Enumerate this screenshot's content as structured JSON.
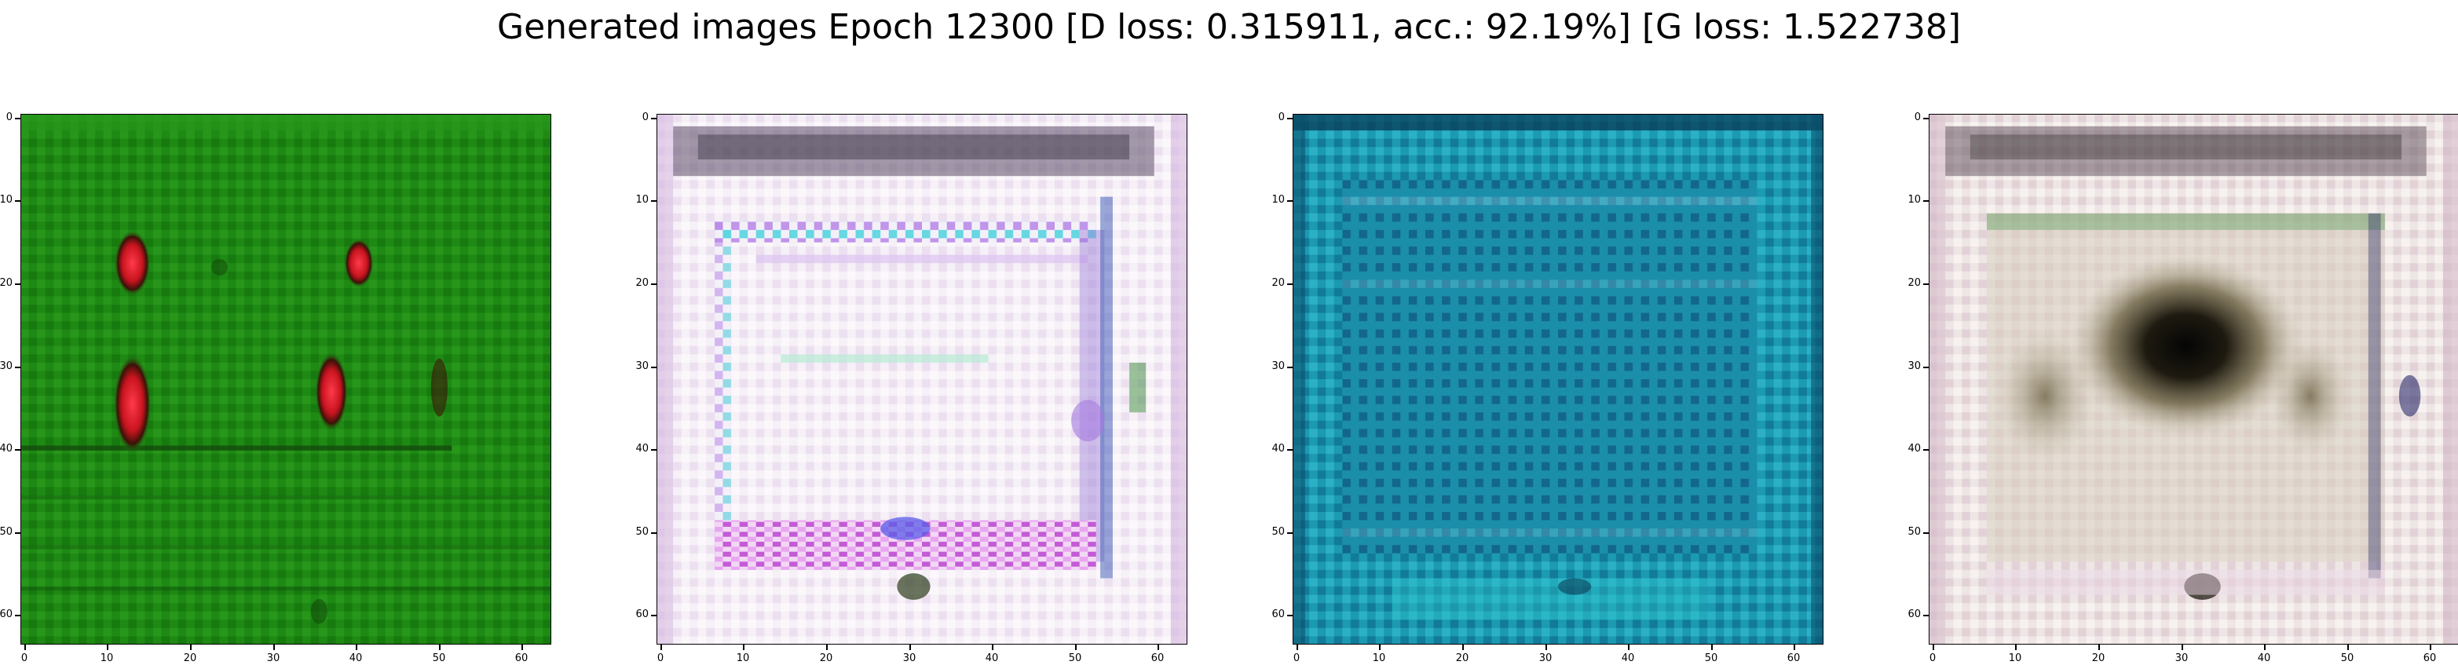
{
  "figure": {
    "title": "Generated images Epoch 12300 [D loss: 0.315911, acc.: 92.19%] [G loss: 1.522738]"
  },
  "axes": {
    "x_ticks": [
      "0",
      "10",
      "20",
      "30",
      "40",
      "50",
      "60"
    ],
    "y_ticks": [
      "0",
      "10",
      "20",
      "30",
      "40",
      "50",
      "60"
    ],
    "range": [
      0,
      63
    ]
  },
  "panels": [
    {
      "name": "generated-image-1",
      "dominant_colors": [
        "#1f8a12",
        "#d81b2a",
        "#111111"
      ]
    },
    {
      "name": "generated-image-2",
      "dominant_colors": [
        "#f4eef6",
        "#c45bd6",
        "#58d6e0"
      ]
    },
    {
      "name": "generated-image-3",
      "dominant_colors": [
        "#1aa0b8",
        "#0b5f86",
        "#0a2f4f"
      ]
    },
    {
      "name": "generated-image-4",
      "dominant_colors": [
        "#ece4e2",
        "#2a2a1a",
        "#c7bca6"
      ]
    }
  ]
}
